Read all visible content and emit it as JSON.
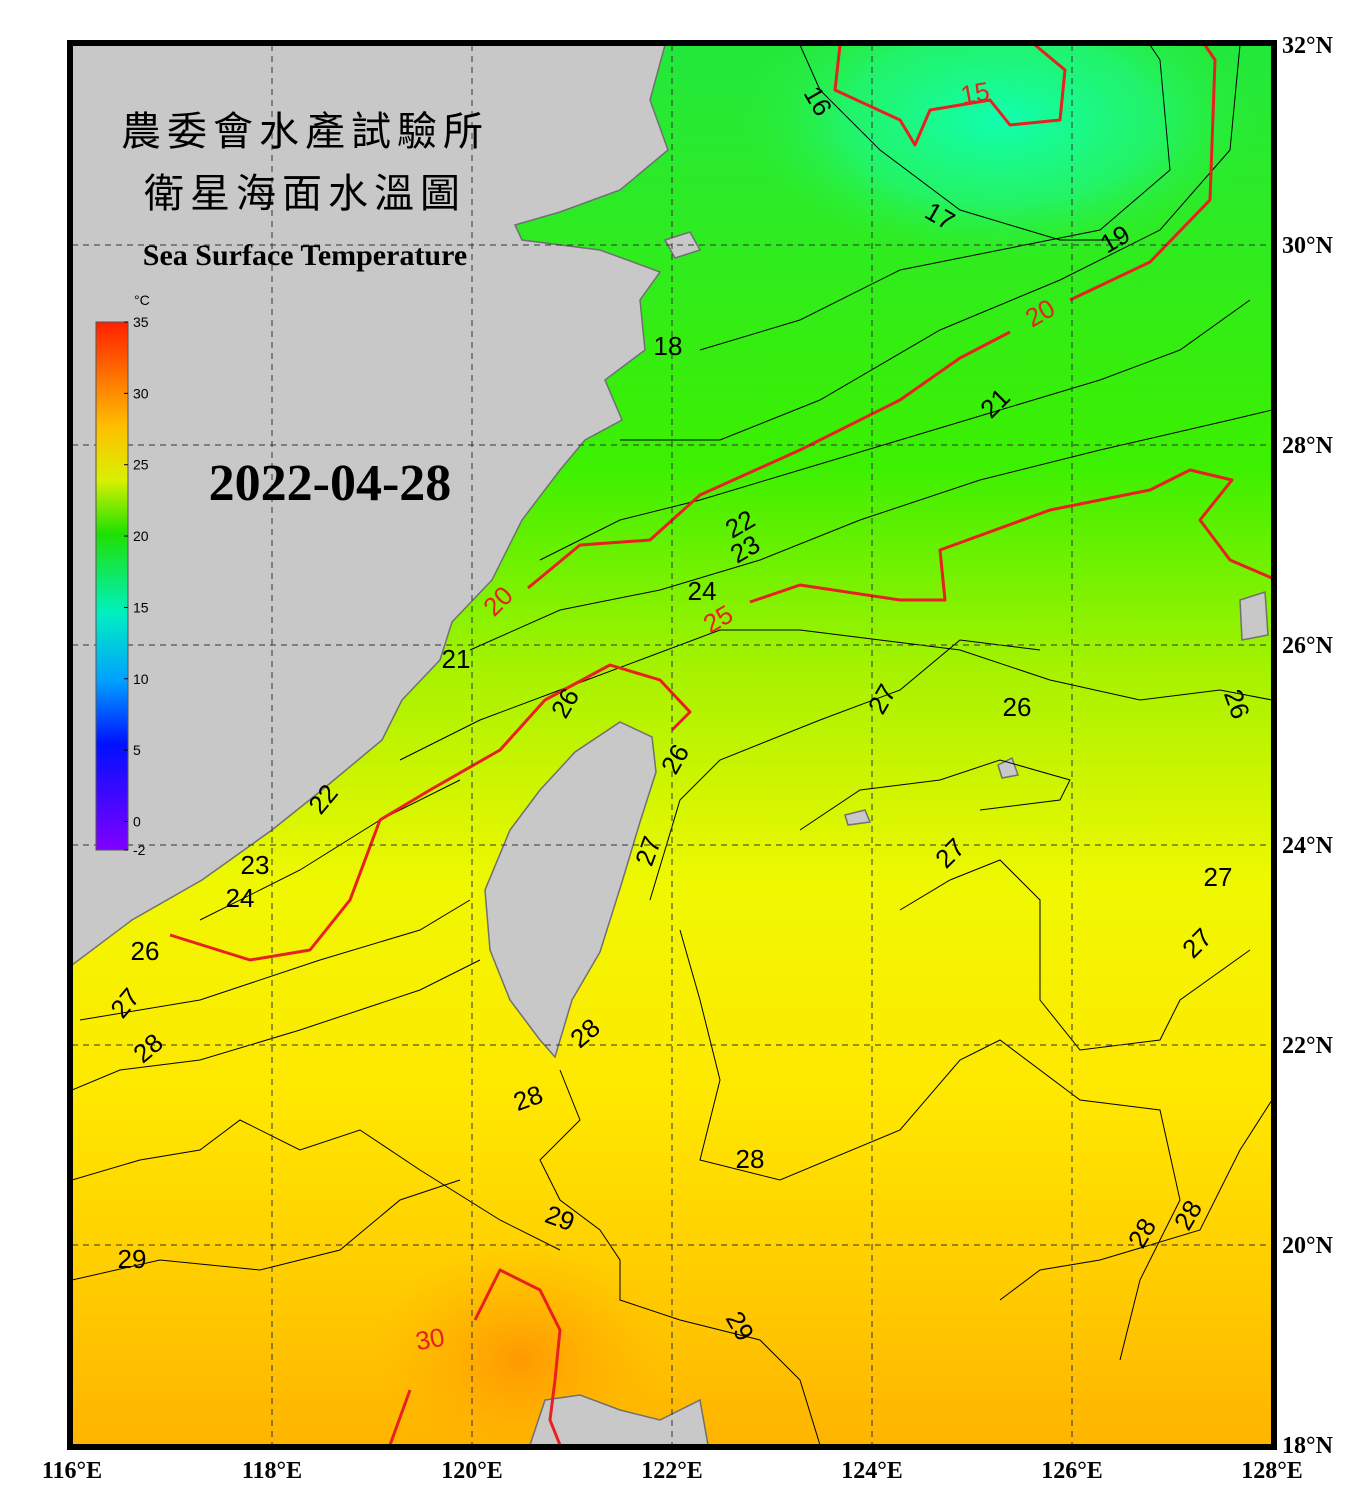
{
  "map": {
    "title_zh_1": "農委會水產試驗所",
    "title_zh_2": "衛星海面水溫圖",
    "title_en": "Sea Surface Temperature",
    "date": "2022-04-28",
    "colorbar": {
      "unit": "°C",
      "range": [
        -2,
        35
      ],
      "ticks": [
        35,
        30,
        25,
        20,
        15,
        10,
        5,
        0,
        -2
      ]
    },
    "lon_ticks": [
      {
        "value": 116,
        "label": "116°E"
      },
      {
        "value": 118,
        "label": "118°E"
      },
      {
        "value": 120,
        "label": "120°E"
      },
      {
        "value": 122,
        "label": "122°E"
      },
      {
        "value": 124,
        "label": "124°E"
      },
      {
        "value": 126,
        "label": "126°E"
      },
      {
        "value": 128,
        "label": "128°E"
      }
    ],
    "lat_ticks": [
      {
        "value": 18,
        "label": "18°N"
      },
      {
        "value": 20,
        "label": "20°N"
      },
      {
        "value": 22,
        "label": "22°N"
      },
      {
        "value": 24,
        "label": "24°N"
      },
      {
        "value": 26,
        "label": "26°N"
      },
      {
        "value": 28,
        "label": "28°N"
      },
      {
        "value": 30,
        "label": "30°N"
      },
      {
        "value": 32,
        "label": "32°N"
      }
    ],
    "lon_range": [
      116,
      128
    ],
    "lat_range": [
      18,
      32
    ],
    "grid": true,
    "contour_labels": [
      "15",
      "16",
      "17",
      "18",
      "19",
      "20",
      "21",
      "22",
      "23",
      "24",
      "25",
      "26",
      "27",
      "26",
      "26",
      "26",
      "20",
      "21",
      "22",
      "23",
      "24",
      "26",
      "27",
      "28",
      "27",
      "27",
      "27",
      "27",
      "28",
      "28",
      "28",
      "29",
      "29",
      "30",
      "29",
      "28",
      "28"
    ]
  }
}
